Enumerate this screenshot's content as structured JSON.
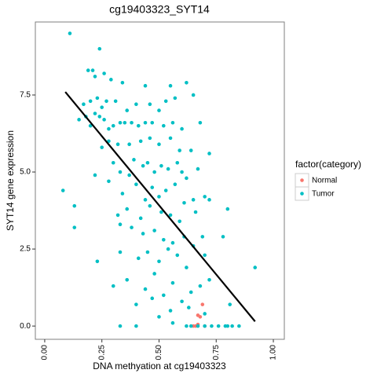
{
  "chart_data": {
    "type": "scatter",
    "title": "cg19403323_SYT14",
    "x_label": "DNA methyation at cg19403323",
    "y_label": "SYT14 gene expression",
    "legend_title": "factor(category)",
    "legend": "right",
    "xlim": [
      -0.041,
      1.048
    ],
    "ylim": [
      -0.43,
      9.87
    ],
    "xticks": [
      {
        "value": 0,
        "label": "0.00"
      },
      {
        "value": 0.25,
        "label": "0.25"
      },
      {
        "value": 0.5,
        "label": "0.50"
      },
      {
        "value": 0.75,
        "label": "0.75"
      },
      {
        "value": 1,
        "label": "1.00"
      }
    ],
    "yticks": [
      {
        "value": 0,
        "label": "0.0"
      },
      2.5,
      {
        "value": 5,
        "label": "5.0"
      },
      7.5
    ],
    "grid": false,
    "fit_line": {
      "color": "#000000",
      "x": [
        0.09,
        0.92
      ],
      "y": [
        7.6,
        0.15
      ]
    },
    "series": [
      {
        "name": "Normal",
        "color": "#F8766D",
        "x": [
          0.66,
          0.67,
          0.68,
          0.69,
          0.7,
          0.65,
          0.67
        ],
        "values": [
          0.0,
          0.05,
          0.3,
          0.7,
          0.0,
          0.0,
          0.35
        ]
      },
      {
        "name": "Tumor",
        "color": "#00BFC4",
        "x": [
          0.11,
          0.24,
          0.19,
          0.21,
          0.22,
          0.26,
          0.29,
          0.34,
          0.44,
          0.55,
          0.62,
          0.17,
          0.2,
          0.23,
          0.25,
          0.27,
          0.31,
          0.36,
          0.4,
          0.46,
          0.5,
          0.53,
          0.57,
          0.65,
          0.15,
          0.18,
          0.2,
          0.22,
          0.24,
          0.26,
          0.28,
          0.3,
          0.33,
          0.35,
          0.38,
          0.41,
          0.44,
          0.47,
          0.52,
          0.56,
          0.6,
          0.68,
          0.72,
          0.25,
          0.28,
          0.32,
          0.37,
          0.42,
          0.46,
          0.5,
          0.55,
          0.59,
          0.64,
          0.22,
          0.3,
          0.33,
          0.37,
          0.39,
          0.43,
          0.45,
          0.48,
          0.51,
          0.54,
          0.58,
          0.6,
          0.62,
          0.67,
          0.08,
          0.13,
          0.13,
          0.28,
          0.34,
          0.4,
          0.44,
          0.47,
          0.5,
          0.53,
          0.57,
          0.61,
          0.65,
          0.7,
          0.72,
          0.32,
          0.36,
          0.42,
          0.46,
          0.51,
          0.55,
          0.59,
          0.66,
          0.8,
          0.33,
          0.38,
          0.43,
          0.48,
          0.52,
          0.56,
          0.61,
          0.65,
          0.69,
          0.78,
          0.23,
          0.33,
          0.41,
          0.45,
          0.5,
          0.54,
          0.58,
          0.62,
          0.7,
          0.92,
          0.3,
          0.36,
          0.44,
          0.48,
          0.52,
          0.56,
          0.6,
          0.64,
          0.68,
          0.72,
          0.4,
          0.47,
          0.55,
          0.63,
          0.7,
          0.81,
          0.33,
          0.4,
          0.5,
          0.56,
          0.62,
          0.64,
          0.67,
          0.7,
          0.73,
          0.76,
          0.79,
          0.8,
          0.82,
          0.85
        ],
        "values": [
          9.5,
          9.0,
          8.3,
          8.3,
          8.1,
          8.2,
          8.0,
          7.9,
          7.8,
          7.8,
          7.9,
          7.2,
          7.3,
          7.4,
          7.1,
          7.3,
          7.3,
          7.0,
          7.2,
          7.2,
          7.0,
          7.3,
          7.4,
          7.5,
          6.7,
          6.8,
          6.5,
          6.9,
          6.8,
          6.7,
          6.4,
          6.5,
          6.6,
          6.6,
          6.6,
          6.5,
          6.6,
          6.6,
          6.5,
          6.6,
          6.4,
          6.6,
          5.6,
          5.8,
          6.0,
          5.9,
          5.9,
          6.0,
          6.1,
          5.9,
          6.1,
          5.7,
          5.7,
          4.9,
          5.3,
          5.0,
          4.9,
          5.4,
          5.2,
          5.3,
          5.0,
          5.2,
          5.1,
          5.3,
          5.0,
          4.8,
          5.1,
          4.4,
          3.9,
          3.2,
          4.7,
          4.3,
          4.6,
          4.1,
          4.5,
          4.2,
          4.4,
          4.6,
          4.0,
          4.1,
          4.2,
          4.1,
          3.6,
          3.8,
          3.5,
          3.9,
          3.7,
          3.6,
          3.4,
          3.7,
          3.8,
          3.3,
          3.2,
          3.0,
          3.1,
          2.8,
          2.7,
          2.9,
          2.6,
          2.9,
          2.9,
          2.1,
          2.4,
          2.2,
          2.4,
          2.1,
          2.5,
          2.3,
          1.9,
          2.3,
          1.9,
          1.3,
          1.5,
          1.2,
          1.7,
          1.0,
          1.4,
          0.8,
          1.1,
          1.3,
          1.5,
          0.7,
          0.9,
          0.5,
          0.6,
          0.4,
          0.7,
          0.0,
          0.0,
          0.3,
          0.1,
          0.0,
          0.0,
          0.0,
          0.0,
          0.0,
          0.0,
          0.0,
          0.0,
          0.0,
          0.0
        ]
      }
    ]
  }
}
